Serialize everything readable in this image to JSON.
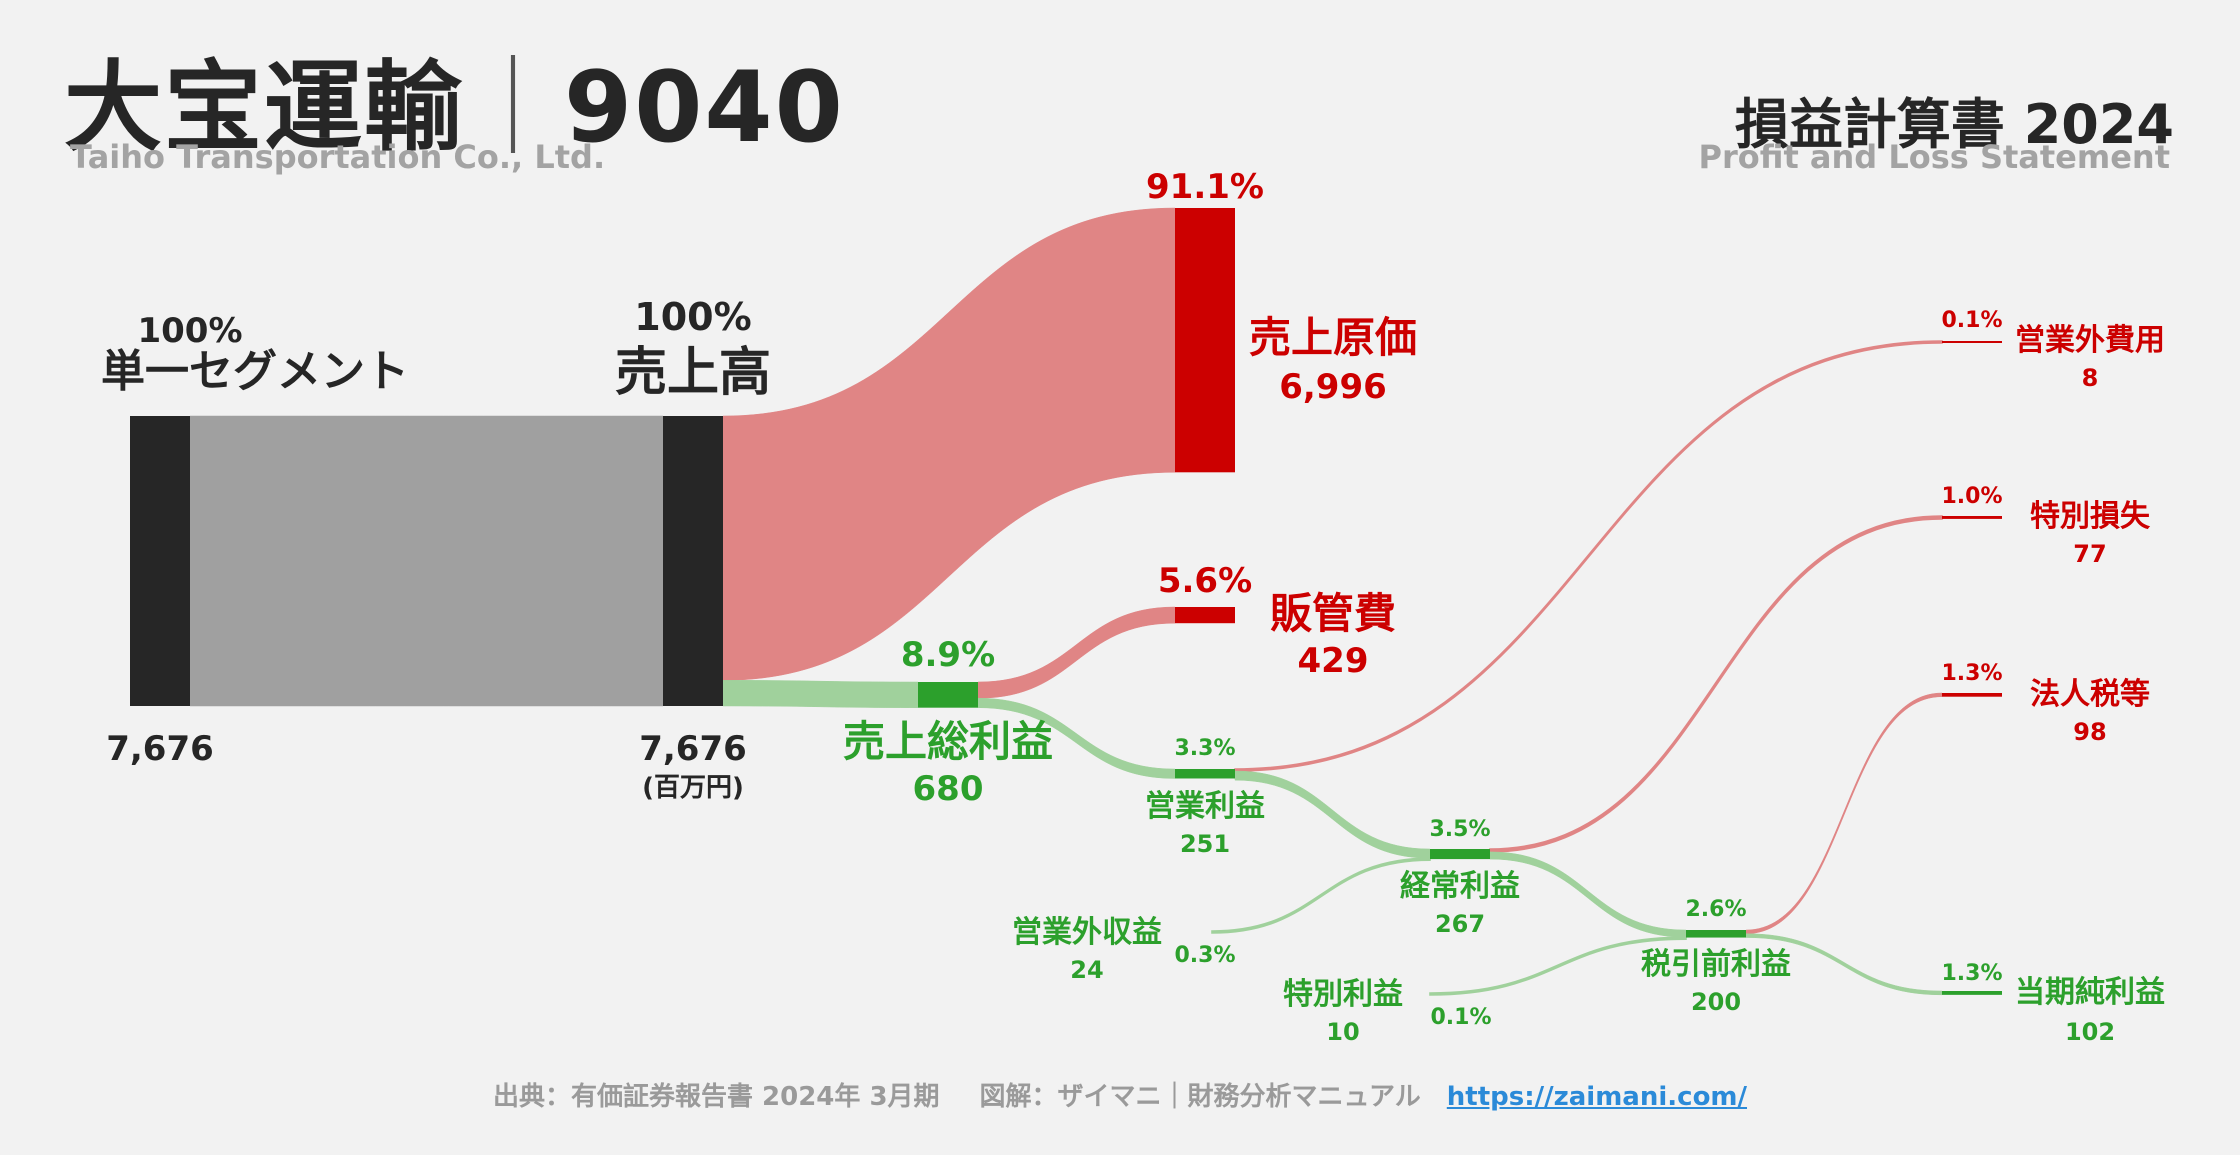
{
  "header": {
    "company": "大宝運輸",
    "separator": "｜",
    "code": "9040",
    "company_en": "Taiho Transportation Co., Ltd.",
    "statement": "損益計算書 2024",
    "statement_en": "Profit and Loss Statement"
  },
  "footer": {
    "source": "出典：有価証券報告書 2024年 3月期",
    "credit": "図解：ザイマニ｜財務分析マニュアル",
    "url": "https://zaimani.com/"
  },
  "colors": {
    "dark": "#262626",
    "gray_flow": "#a0a0a0",
    "cost": "#cc0000",
    "cost_flow": "#e08585",
    "profit": "#2ca02c",
    "profit_flow": "#a0d19c"
  },
  "chart_data": {
    "type": "sankey",
    "unit": "(百万円)",
    "nodes": [
      {
        "id": "segment",
        "name": "単一セグメント",
        "value": 7676,
        "value_label": "7,676",
        "pct": "100%",
        "kind": "source"
      },
      {
        "id": "revenue",
        "name": "売上高",
        "value": 7676,
        "value_label": "7,676",
        "pct": "100%",
        "kind": "source"
      },
      {
        "id": "cogs",
        "name": "売上原価",
        "value": 6996,
        "value_label": "6,996",
        "pct": "91.1%",
        "kind": "cost"
      },
      {
        "id": "gross",
        "name": "売上総利益",
        "value": 680,
        "value_label": "680",
        "pct": "8.9%",
        "kind": "profit"
      },
      {
        "id": "sga",
        "name": "販管費",
        "value": 429,
        "value_label": "429",
        "pct": "5.6%",
        "kind": "cost"
      },
      {
        "id": "op",
        "name": "営業利益",
        "value": 251,
        "value_label": "251",
        "pct": "3.3%",
        "kind": "profit"
      },
      {
        "id": "nonop_inc",
        "name": "営業外収益",
        "value": 24,
        "value_label": "24",
        "pct": "0.3%",
        "kind": "profit"
      },
      {
        "id": "nonop_exp",
        "name": "営業外費用",
        "value": 8,
        "value_label": "8",
        "pct": "0.1%",
        "kind": "cost"
      },
      {
        "id": "ordinary",
        "name": "経常利益",
        "value": 267,
        "value_label": "267",
        "pct": "3.5%",
        "kind": "profit"
      },
      {
        "id": "ext_gain",
        "name": "特別利益",
        "value": 10,
        "value_label": "10",
        "pct": "0.1%",
        "kind": "profit"
      },
      {
        "id": "ext_loss",
        "name": "特別損失",
        "value": 77,
        "value_label": "77",
        "pct": "1.0%",
        "kind": "cost"
      },
      {
        "id": "pretax",
        "name": "税引前利益",
        "value": 200,
        "value_label": "200",
        "pct": "2.6%",
        "kind": "profit"
      },
      {
        "id": "tax",
        "name": "法人税等",
        "value": 98,
        "value_label": "98",
        "pct": "1.3%",
        "kind": "cost"
      },
      {
        "id": "net",
        "name": "当期純利益",
        "value": 102,
        "value_label": "102",
        "pct": "1.3%",
        "kind": "profit"
      }
    ],
    "links": [
      {
        "source": "segment",
        "target": "revenue",
        "value": 7676
      },
      {
        "source": "revenue",
        "target": "cogs",
        "value": 6996
      },
      {
        "source": "revenue",
        "target": "gross",
        "value": 680
      },
      {
        "source": "gross",
        "target": "sga",
        "value": 429
      },
      {
        "source": "gross",
        "target": "op",
        "value": 251
      },
      {
        "source": "op",
        "target": "nonop_exp",
        "value": 8
      },
      {
        "source": "op",
        "target": "ordinary",
        "value": 243
      },
      {
        "source": "nonop_inc",
        "target": "ordinary",
        "value": 24
      },
      {
        "source": "ordinary",
        "target": "ext_loss",
        "value": 77
      },
      {
        "source": "ordinary",
        "target": "pretax",
        "value": 190
      },
      {
        "source": "ext_gain",
        "target": "pretax",
        "value": 10
      },
      {
        "source": "pretax",
        "target": "tax",
        "value": 98
      },
      {
        "source": "pretax",
        "target": "net",
        "value": 102
      }
    ]
  }
}
